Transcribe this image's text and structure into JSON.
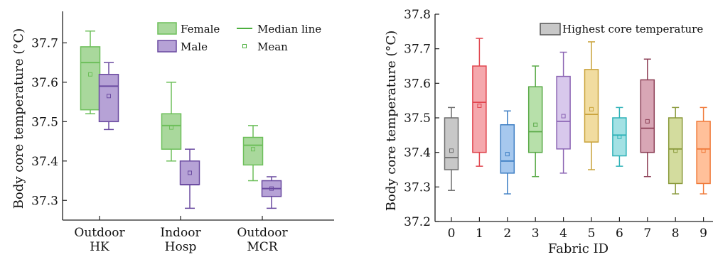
{
  "chart_data": [
    {
      "type": "box",
      "ylabel": "Body core temperature (°C)",
      "xlabel": "",
      "ylim": [
        37.25,
        37.78
      ],
      "yticks": [
        37.3,
        37.4,
        37.5,
        37.6,
        37.7
      ],
      "categories": [
        "Outdoor\nHK",
        "Indoor\nHosp",
        "Outdoor\nMCR"
      ],
      "legend": {
        "position": "top-right",
        "items": [
          {
            "label": "Female",
            "kind": "box",
            "color": "#6dbf5a"
          },
          {
            "label": "Median line",
            "kind": "line",
            "color": "#4caf3e"
          },
          {
            "label": "Male",
            "kind": "box",
            "color": "#7c5fb0"
          },
          {
            "label": "Mean",
            "kind": "marker",
            "color": "#4caf3e"
          }
        ]
      },
      "series": [
        {
          "name": "Female",
          "color": "#6dbf5a",
          "fill": "#a9d89c",
          "boxes": [
            {
              "min": 37.52,
              "q1": 37.53,
              "median": 37.65,
              "q3": 37.69,
              "max": 37.73,
              "mean": 37.62
            },
            {
              "min": 37.4,
              "q1": 37.43,
              "median": 37.49,
              "q3": 37.52,
              "max": 37.6,
              "mean": 37.485
            },
            {
              "min": 37.35,
              "q1": 37.39,
              "median": 37.44,
              "q3": 37.46,
              "max": 37.49,
              "mean": 37.43
            }
          ]
        },
        {
          "name": "Male",
          "color": "#6a4aa0",
          "fill": "#b6a2d6",
          "boxes": [
            {
              "min": 37.48,
              "q1": 37.5,
              "median": 37.59,
              "q3": 37.62,
              "max": 37.65,
              "mean": 37.565
            },
            {
              "min": 37.28,
              "q1": 37.34,
              "median": 37.34,
              "q3": 37.4,
              "max": 37.43,
              "mean": 37.37
            },
            {
              "min": 37.28,
              "q1": 37.31,
              "median": 37.33,
              "q3": 37.35,
              "max": 37.36,
              "mean": 37.33
            }
          ]
        }
      ]
    },
    {
      "type": "box",
      "ylabel": "Body core temperature (°C)",
      "xlabel": "Fabric ID",
      "ylim": [
        37.2,
        37.8
      ],
      "yticks": [
        37.2,
        37.3,
        37.4,
        37.5,
        37.6,
        37.7,
        37.8
      ],
      "categories": [
        "0",
        "1",
        "2",
        "3",
        "4",
        "5",
        "6",
        "7",
        "8",
        "9"
      ],
      "legend": {
        "position": "top-right",
        "items": [
          {
            "label": "Highest core temperature",
            "kind": "box",
            "color": "#9a9a9a"
          }
        ]
      },
      "boxes": [
        {
          "min": 37.29,
          "q1": 37.35,
          "median": 37.385,
          "q3": 37.5,
          "max": 37.53,
          "mean": 37.405,
          "color": "#6e6e6e",
          "fill": "#c8c8c8"
        },
        {
          "min": 37.36,
          "q1": 37.4,
          "median": 37.545,
          "q3": 37.65,
          "max": 37.73,
          "mean": 37.535,
          "color": "#e0454e",
          "fill": "#f5a8ad"
        },
        {
          "min": 37.28,
          "q1": 37.34,
          "median": 37.375,
          "q3": 37.48,
          "max": 37.52,
          "mean": 37.395,
          "color": "#3f7fc4",
          "fill": "#a6c8ee"
        },
        {
          "min": 37.33,
          "q1": 37.4,
          "median": 37.46,
          "q3": 37.59,
          "max": 37.65,
          "mean": 37.48,
          "color": "#5aaa48",
          "fill": "#b7e0aa"
        },
        {
          "min": 37.34,
          "q1": 37.41,
          "median": 37.49,
          "q3": 37.62,
          "max": 37.69,
          "mean": 37.505,
          "color": "#8a63b3",
          "fill": "#d8c8ec"
        },
        {
          "min": 37.35,
          "q1": 37.43,
          "median": 37.51,
          "q3": 37.64,
          "max": 37.72,
          "mean": 37.525,
          "color": "#c9a23a",
          "fill": "#f1dca0"
        },
        {
          "min": 37.36,
          "q1": 37.39,
          "median": 37.45,
          "q3": 37.5,
          "max": 37.53,
          "mean": 37.445,
          "color": "#2fb2b8",
          "fill": "#a3e1e4"
        },
        {
          "min": 37.33,
          "q1": 37.4,
          "median": 37.47,
          "q3": 37.61,
          "max": 37.67,
          "mean": 37.49,
          "color": "#8c3f56",
          "fill": "#d8a6b5"
        },
        {
          "min": 37.28,
          "q1": 37.31,
          "median": 37.41,
          "q3": 37.5,
          "max": 37.53,
          "mean": 37.405,
          "color": "#8a9a3c",
          "fill": "#d3dc9e"
        },
        {
          "min": 37.28,
          "q1": 37.31,
          "median": 37.41,
          "q3": 37.49,
          "max": 37.53,
          "mean": 37.405,
          "color": "#f07a3a",
          "fill": "#ffc09a"
        }
      ]
    }
  ]
}
